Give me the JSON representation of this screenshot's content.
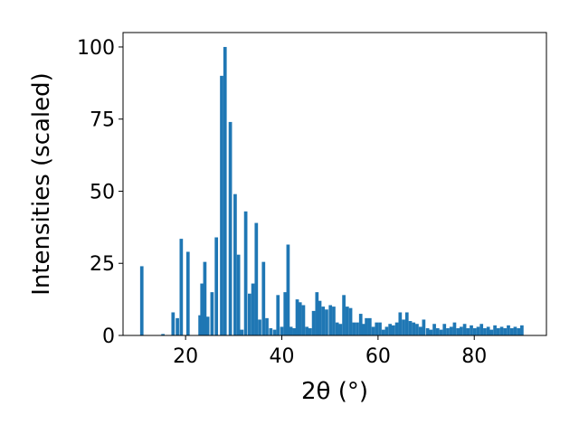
{
  "chart_data": {
    "type": "bar",
    "title": "",
    "xlabel": "2θ (°)",
    "ylabel": "Intensities (scaled)",
    "xlim": [
      7,
      95
    ],
    "ylim": [
      0,
      105
    ],
    "x_ticks": [
      20,
      40,
      60,
      80
    ],
    "y_ticks": [
      0,
      25,
      50,
      75,
      100
    ],
    "grid": false,
    "legend": "none",
    "bar_width": 0.7,
    "colors": {
      "bars": "#1f77b4",
      "axes": "#000000",
      "background": "#ffffff"
    },
    "series": [
      {
        "x": [
          10.9,
          15.3,
          17.4,
          18.3,
          19.1,
          20.5,
          23.0,
          23.4,
          24.0,
          24.6,
          25.5,
          26.4,
          27.5,
          28.2,
          29.3,
          30.3,
          31.0,
          31.7,
          32.5,
          33.3,
          34.0,
          34.7,
          35.4,
          36.2,
          36.9,
          37.7,
          38.5,
          39.2,
          40.0,
          40.7,
          41.3,
          41.9,
          42.6,
          43.2,
          43.8,
          44.5,
          45.2,
          45.9,
          46.6,
          47.3,
          47.9,
          48.6,
          49.3,
          50.1,
          50.8,
          51.5,
          52.2,
          52.9,
          53.6,
          54.3,
          55.0,
          55.7,
          56.4,
          57.0,
          57.6,
          58.3,
          59.0,
          59.7,
          60.4,
          61.1,
          61.8,
          62.5,
          63.2,
          63.9,
          64.6,
          65.3,
          66.0,
          66.7,
          67.4,
          68.1,
          68.8,
          69.5,
          70.3,
          71.0,
          71.7,
          72.4,
          73.1,
          73.8,
          74.5,
          75.2,
          75.9,
          76.6,
          77.3,
          78.0,
          78.7,
          79.4,
          80.1,
          80.8,
          81.5,
          82.2,
          82.9,
          83.6,
          84.3,
          85.0,
          85.7,
          86.4,
          87.1,
          87.8,
          88.5,
          89.2,
          89.9
        ],
        "values": [
          24,
          0.5,
          8,
          6,
          33.5,
          29,
          7,
          18,
          25.5,
          6.5,
          15,
          34,
          90,
          100,
          74,
          49,
          28,
          2,
          43,
          14.5,
          18,
          39,
          5.5,
          25.5,
          6,
          2.5,
          2,
          14,
          3,
          15,
          31.5,
          3,
          2.5,
          12.5,
          11.5,
          10.5,
          3,
          2.5,
          8.5,
          15,
          12,
          10,
          9,
          10.5,
          10,
          4.5,
          4,
          14,
          10,
          9.5,
          4.5,
          4.5,
          7.5,
          4,
          6,
          6,
          3,
          4.5,
          4.5,
          2,
          3,
          4,
          3.5,
          4.5,
          8,
          5.5,
          8,
          5,
          4.5,
          4,
          3,
          5.5,
          2.5,
          2,
          4,
          2.5,
          2,
          4,
          2.5,
          3,
          4.5,
          2.5,
          3,
          4,
          2.5,
          3.5,
          2.5,
          3,
          4,
          2.5,
          3,
          2,
          3.5,
          2.5,
          3,
          2.5,
          3.5,
          2.5,
          3,
          2.5,
          3.5
        ]
      }
    ]
  }
}
